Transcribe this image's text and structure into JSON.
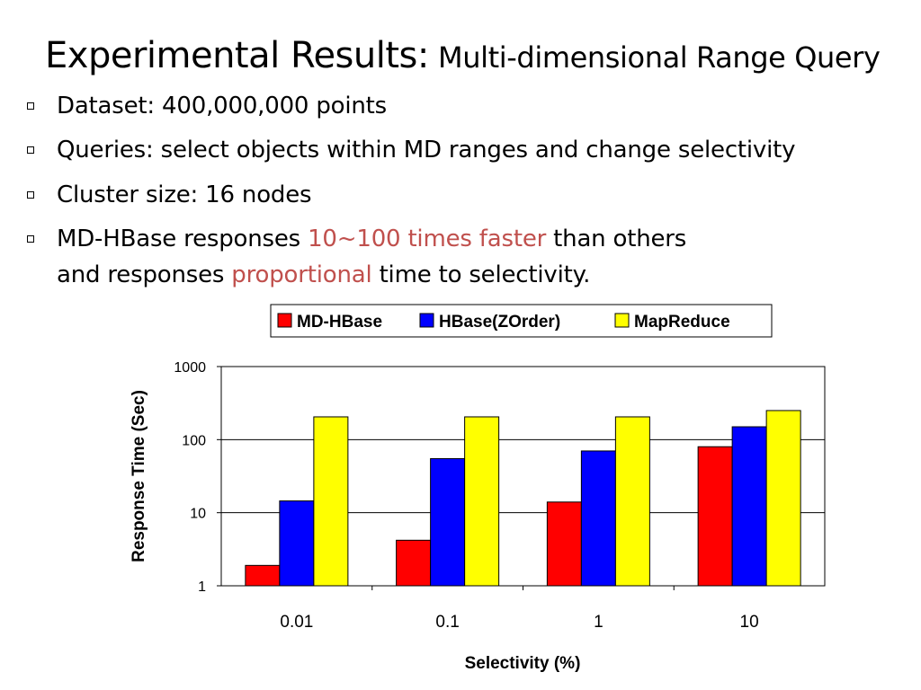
{
  "slide": {
    "title_main": "Experimental Results:",
    "title_sub": "Multi-dimensional Range Query",
    "bullets": [
      {
        "text": "Dataset: 400,000,000 points"
      },
      {
        "text": "Queries: select objects within MD ranges and change selectivity"
      },
      {
        "text": "Cluster size: 16 nodes"
      },
      {
        "line1_pre": "MD-HBase responses ",
        "line1_highlight": "10~100 times faster",
        "line1_post": " than others",
        "line2_pre": "and responses ",
        "line2_highlight": "proportional",
        "line2_post": " time to selectivity."
      }
    ],
    "highlight_color": "#c0504d"
  },
  "chart_data": {
    "type": "bar",
    "title": "",
    "xlabel": "Selectivity (%)",
    "ylabel": "Response Time (Sec)",
    "yscale": "log",
    "ylim": [
      1,
      1000
    ],
    "yticks": [
      1,
      10,
      100,
      1000
    ],
    "ytick_labels": [
      "1",
      "10",
      "100",
      "1000"
    ],
    "grid": "horizontal",
    "legend_position": "top",
    "categories": [
      "0.01",
      "0.1",
      "1",
      "10"
    ],
    "series": [
      {
        "name": "MD-HBase",
        "color": "#ff0000",
        "values": [
          1.9,
          4.2,
          14,
          80
        ]
      },
      {
        "name": "HBase(ZOrder)",
        "color": "#0000ff",
        "values": [
          14.5,
          55,
          70,
          150
        ]
      },
      {
        "name": "MapReduce",
        "color": "#ffff00",
        "values": [
          205,
          205,
          205,
          250
        ]
      }
    ]
  }
}
